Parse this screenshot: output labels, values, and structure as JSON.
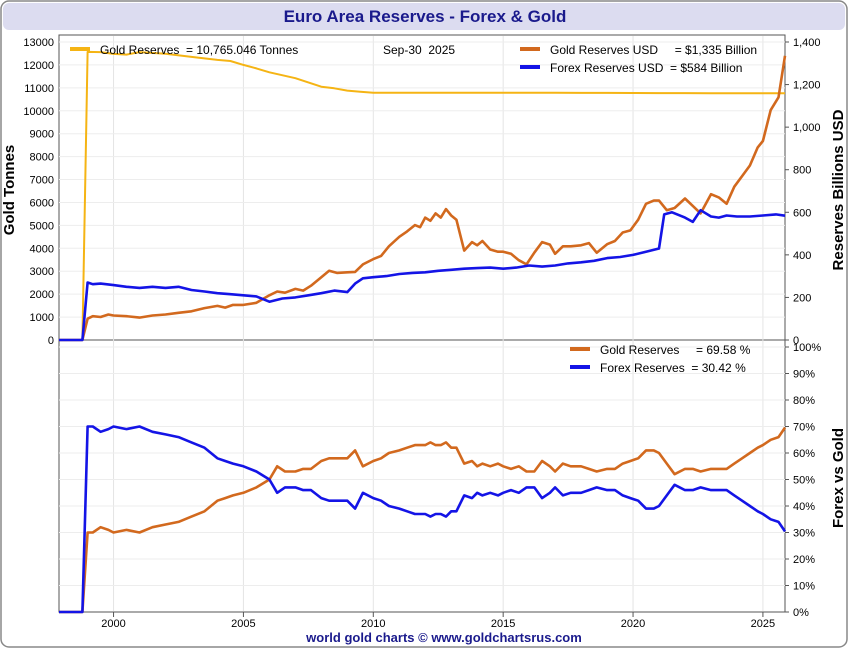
{
  "title": "Euro Area Reserves - Forex & Gold",
  "footer": "world gold charts © www.goldchartsrus.com",
  "colors": {
    "gold_tonnes": "#f5b414",
    "gold_usd": "#d2691e",
    "forex": "#1414e6",
    "title_text": "#1a1a8c",
    "frame_border": "#888888",
    "header_bg": "#dcdcf0"
  },
  "chart_data": [
    {
      "type": "line",
      "name": "top-panel",
      "title": "Euro Area Reserves - Forex & Gold",
      "ylabel_left": "Gold Tonnes",
      "ylabel_right": "Reserves Billions USD",
      "date_label": "Sep-30  2025",
      "x_ticks": [
        2000,
        2005,
        2010,
        2015,
        2020,
        2025
      ],
      "xlim": [
        1997.9,
        2025.85
      ],
      "ylim_left": [
        0,
        13000
      ],
      "ylim_right": [
        0,
        1400
      ],
      "y_ticks_left": [
        "0",
        "1000",
        "2000",
        "3000",
        "4000",
        "5000",
        "6000",
        "7000",
        "8000",
        "9000",
        "10000",
        "11000",
        "12000",
        "13000"
      ],
      "y_ticks_right": [
        "0",
        "200",
        "400",
        "600",
        "800",
        "1,000",
        "1,200",
        "1,400"
      ],
      "legend": [
        {
          "label": "Gold Reserves  = 10,765.046 Tonnes",
          "series": "gold_tonnes"
        },
        {
          "label": "Gold Reserves USD     = $1,335 Billion",
          "series": "gold_usd"
        },
        {
          "label": "Forex Reserves USD  = $584 Billion",
          "series": "forex"
        }
      ],
      "series": [
        {
          "name": "gold_tonnes",
          "axis": "left",
          "x": [
            1997.9,
            1998.8,
            1999.0,
            1999.5,
            2000,
            2000.5,
            2001,
            2002,
            2003,
            2004,
            2004.5,
            2005,
            2005.5,
            2006,
            2007,
            2008,
            2008.5,
            2009,
            2009.5,
            2010,
            2011,
            2012,
            2013,
            2014,
            2015,
            2016,
            2017,
            2018,
            2019,
            2020,
            2021,
            2022,
            2023,
            2024,
            2025,
            2025.85
          ],
          "values": [
            0,
            0,
            12570,
            12560,
            12480,
            12450,
            12560,
            12490,
            12350,
            12220,
            12170,
            12000,
            11850,
            11680,
            11420,
            11050,
            10980,
            10880,
            10830,
            10790,
            10790,
            10785,
            10785,
            10785,
            10790,
            10790,
            10785,
            10780,
            10780,
            10775,
            10770,
            10770,
            10768,
            10766,
            10765,
            10765
          ]
        },
        {
          "name": "gold_usd",
          "axis": "right",
          "x": [
            1997.9,
            1998.8,
            1999.0,
            1999.2,
            1999.5,
            1999.8,
            2000.0,
            2000.5,
            2001,
            2001.5,
            2002,
            2002.5,
            2003,
            2003.5,
            2004,
            2004.3,
            2004.6,
            2005,
            2005.5,
            2006,
            2006.3,
            2006.6,
            2007,
            2007.3,
            2007.6,
            2008,
            2008.3,
            2008.6,
            2009,
            2009.3,
            2009.6,
            2010,
            2010.3,
            2010.6,
            2011,
            2011.3,
            2011.6,
            2011.8,
            2012,
            2012.2,
            2012.4,
            2012.6,
            2012.8,
            2013,
            2013.2,
            2013.5,
            2013.8,
            2014,
            2014.2,
            2014.5,
            2014.8,
            2015,
            2015.3,
            2015.6,
            2015.9,
            2016.2,
            2016.5,
            2016.8,
            2017,
            2017.3,
            2017.6,
            2018,
            2018.3,
            2018.6,
            2019,
            2019.3,
            2019.6,
            2019.9,
            2020.2,
            2020.5,
            2020.8,
            2021,
            2021.3,
            2021.6,
            2022,
            2022.3,
            2022.6,
            2023,
            2023.3,
            2023.6,
            2023.9,
            2024.2,
            2024.5,
            2024.8,
            2025,
            2025.3,
            2025.6,
            2025.85
          ],
          "values": [
            0,
            0,
            100,
            112,
            108,
            120,
            115,
            112,
            105,
            115,
            120,
            128,
            135,
            150,
            160,
            152,
            165,
            165,
            175,
            210,
            228,
            222,
            240,
            232,
            255,
            295,
            325,
            315,
            318,
            320,
            355,
            380,
            395,
            440,
            485,
            510,
            540,
            530,
            575,
            560,
            595,
            575,
            615,
            585,
            565,
            420,
            460,
            445,
            465,
            425,
            415,
            415,
            405,
            375,
            355,
            410,
            460,
            448,
            405,
            440,
            440,
            445,
            455,
            410,
            450,
            465,
            505,
            515,
            565,
            640,
            655,
            655,
            610,
            620,
            665,
            630,
            595,
            685,
            670,
            640,
            720,
            770,
            820,
            905,
            935,
            1080,
            1140,
            1335
          ]
        },
        {
          "name": "forex",
          "axis": "right",
          "x": [
            1997.9,
            1998.8,
            1999.0,
            1999.2,
            1999.5,
            2000.0,
            2000.5,
            2001,
            2001.5,
            2002,
            2002.5,
            2003,
            2003.5,
            2004,
            2004.5,
            2005,
            2005.5,
            2006,
            2006.5,
            2007,
            2007.5,
            2008,
            2008.5,
            2009,
            2009.3,
            2009.6,
            2010,
            2010.5,
            2011,
            2011.5,
            2012,
            2012.5,
            2013,
            2013.5,
            2014,
            2014.5,
            2015,
            2015.5,
            2016,
            2016.5,
            2017,
            2017.5,
            2018,
            2018.5,
            2019,
            2019.5,
            2020,
            2020.5,
            2021,
            2021.2,
            2021.5,
            2022,
            2022.3,
            2022.6,
            2023,
            2023.3,
            2023.6,
            2024,
            2024.5,
            2025,
            2025.5,
            2025.85
          ],
          "values": [
            0,
            0,
            270,
            262,
            265,
            258,
            250,
            245,
            250,
            245,
            250,
            235,
            228,
            220,
            215,
            210,
            205,
            180,
            195,
            200,
            210,
            220,
            232,
            225,
            265,
            290,
            295,
            300,
            310,
            315,
            318,
            325,
            330,
            335,
            338,
            340,
            335,
            340,
            350,
            345,
            350,
            360,
            365,
            372,
            385,
            390,
            400,
            415,
            430,
            590,
            600,
            575,
            555,
            610,
            580,
            575,
            585,
            580,
            580,
            585,
            590,
            584
          ]
        }
      ]
    },
    {
      "type": "line",
      "name": "bottom-panel",
      "ylabel_right": "Forex vs Gold",
      "x_ticks": [
        2000,
        2005,
        2010,
        2015,
        2020,
        2025
      ],
      "xlim": [
        1997.9,
        2025.85
      ],
      "ylim": [
        0,
        100
      ],
      "y_ticks_right": [
        "0%",
        "10%",
        "20%",
        "30%",
        "40%",
        "50%",
        "60%",
        "70%",
        "80%",
        "90%",
        "100%"
      ],
      "legend": [
        {
          "label": "Gold Reserves     = 69.58 %",
          "series": "gold_pct"
        },
        {
          "label": "Forex Reserves  = 30.42 %",
          "series": "forex_pct"
        }
      ],
      "series": [
        {
          "name": "gold_pct",
          "x": [
            1997.9,
            1998.8,
            1999.0,
            1999.2,
            1999.5,
            1999.8,
            2000.0,
            2000.5,
            2001,
            2001.5,
            2002,
            2002.5,
            2003,
            2003.5,
            2004,
            2004.3,
            2004.6,
            2005,
            2005.5,
            2006,
            2006.3,
            2006.6,
            2007,
            2007.3,
            2007.6,
            2008,
            2008.3,
            2008.6,
            2009,
            2009.3,
            2009.6,
            2010,
            2010.3,
            2010.6,
            2011,
            2011.3,
            2011.6,
            2011.8,
            2012,
            2012.2,
            2012.4,
            2012.6,
            2012.8,
            2013,
            2013.2,
            2013.5,
            2013.8,
            2014,
            2014.2,
            2014.5,
            2014.8,
            2015,
            2015.3,
            2015.6,
            2015.9,
            2016.2,
            2016.5,
            2016.8,
            2017,
            2017.3,
            2017.6,
            2018,
            2018.3,
            2018.6,
            2019,
            2019.3,
            2019.6,
            2019.9,
            2020.2,
            2020.5,
            2020.8,
            2021,
            2021.3,
            2021.6,
            2022,
            2022.3,
            2022.6,
            2023,
            2023.3,
            2023.6,
            2023.9,
            2024.2,
            2024.5,
            2024.8,
            2025,
            2025.3,
            2025.6,
            2025.85
          ],
          "values": [
            0,
            0,
            30,
            30,
            32,
            31,
            30,
            31,
            30,
            32,
            33,
            34,
            36,
            38,
            42,
            43,
            44,
            45,
            47,
            50,
            55,
            53,
            53,
            54,
            54,
            57,
            58,
            58,
            58,
            61,
            55,
            57,
            58,
            60,
            61,
            62,
            63,
            63,
            63,
            64,
            63,
            63,
            64,
            62,
            62,
            56,
            57,
            55,
            56,
            55,
            56,
            55,
            54,
            55,
            53,
            53,
            57,
            55,
            53,
            56,
            55,
            55,
            54,
            53,
            54,
            54,
            56,
            57,
            58,
            61,
            61,
            60,
            56,
            52,
            54,
            54,
            53,
            54,
            54,
            54,
            56,
            58,
            60,
            62,
            63,
            65,
            66,
            69.58
          ]
        },
        {
          "name": "forex_pct",
          "x": [
            1997.9,
            1998.8,
            1999.0,
            1999.2,
            1999.5,
            1999.8,
            2000.0,
            2000.5,
            2001,
            2001.5,
            2002,
            2002.5,
            2003,
            2003.5,
            2004,
            2004.3,
            2004.6,
            2005,
            2005.5,
            2006,
            2006.3,
            2006.6,
            2007,
            2007.3,
            2007.6,
            2008,
            2008.3,
            2008.6,
            2009,
            2009.3,
            2009.6,
            2010,
            2010.3,
            2010.6,
            2011,
            2011.3,
            2011.6,
            2011.8,
            2012,
            2012.2,
            2012.4,
            2012.6,
            2012.8,
            2013,
            2013.2,
            2013.5,
            2013.8,
            2014,
            2014.2,
            2014.5,
            2014.8,
            2015,
            2015.3,
            2015.6,
            2015.9,
            2016.2,
            2016.5,
            2016.8,
            2017,
            2017.3,
            2017.6,
            2018,
            2018.3,
            2018.6,
            2019,
            2019.3,
            2019.6,
            2019.9,
            2020.2,
            2020.5,
            2020.8,
            2021,
            2021.3,
            2021.6,
            2022,
            2022.3,
            2022.6,
            2023,
            2023.3,
            2023.6,
            2023.9,
            2024.2,
            2024.5,
            2024.8,
            2025,
            2025.3,
            2025.6,
            2025.85
          ],
          "values": [
            0,
            0,
            70,
            70,
            68,
            69,
            70,
            69,
            70,
            68,
            67,
            66,
            64,
            62,
            58,
            57,
            56,
            55,
            53,
            50,
            45,
            47,
            47,
            46,
            46,
            43,
            42,
            42,
            42,
            39,
            45,
            43,
            42,
            40,
            39,
            38,
            37,
            37,
            37,
            36,
            37,
            37,
            36,
            38,
            38,
            44,
            43,
            45,
            44,
            45,
            44,
            45,
            46,
            45,
            47,
            47,
            43,
            45,
            47,
            44,
            45,
            45,
            46,
            47,
            46,
            46,
            44,
            43,
            42,
            39,
            39,
            40,
            44,
            48,
            46,
            46,
            47,
            46,
            46,
            46,
            44,
            42,
            40,
            38,
            37,
            35,
            34,
            30.42
          ]
        }
      ]
    }
  ]
}
